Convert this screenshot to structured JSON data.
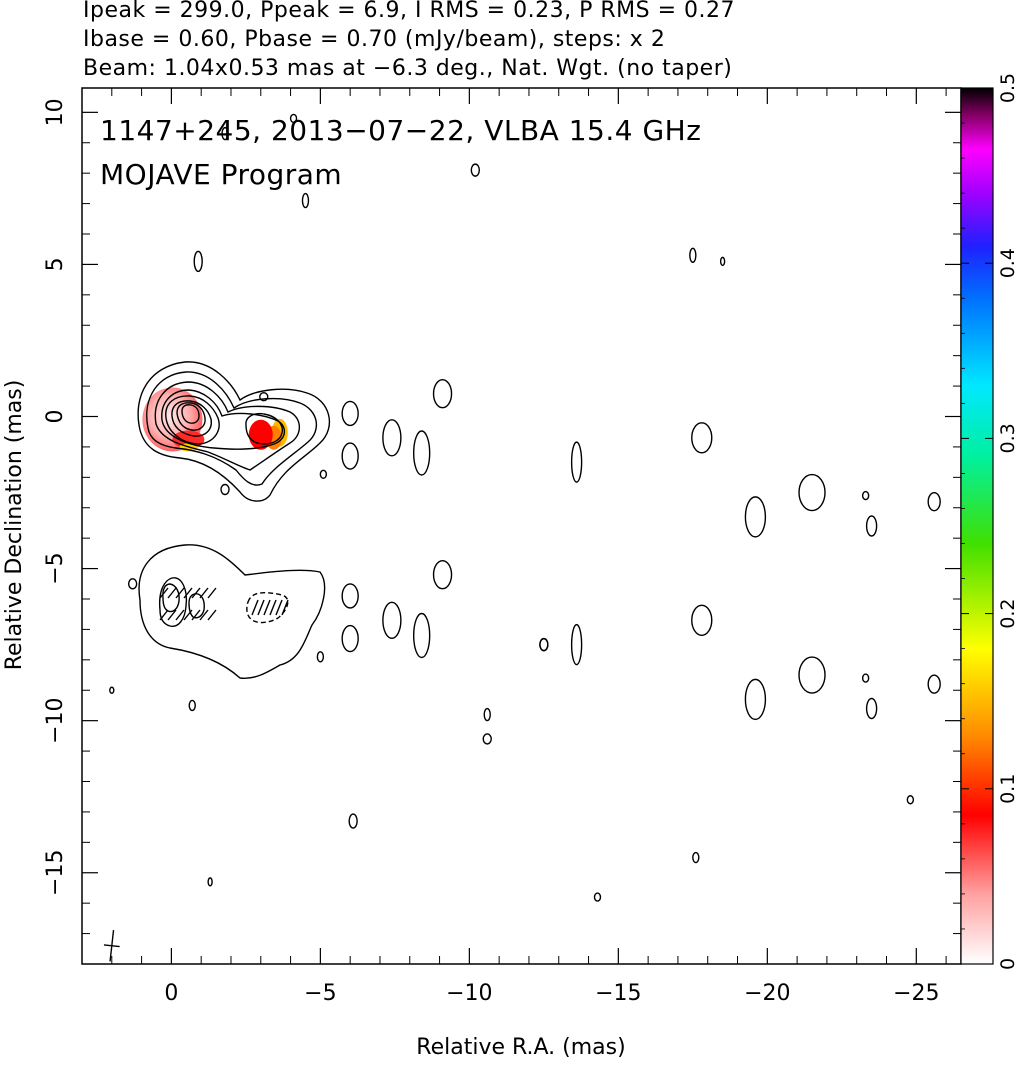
{
  "header": {
    "line1": "Ipeak = 299.0, Ppeak = 6.9, I RMS = 0.23, P RMS = 0.27",
    "line2": "Ibase = 0.60, Pbase = 0.70 (mJy/beam), steps: x 2",
    "line3": "Beam: 1.04x0.53 mas at −6.3 deg., Nat. Wgt. (no taper)"
  },
  "chart_data": [
    {
      "type": "contour-map",
      "title": "1147+245, 2013−07−22, VLBA 15.4 GHz",
      "subtitle": "MOJAVE Program",
      "xlabel": "Relative R.A. (mas)",
      "ylabel": "Relative Declination (mas)",
      "xlim": [
        3,
        -26.5
      ],
      "ylim": [
        -18,
        10.8
      ],
      "x_ticks": [
        0,
        -5,
        -10,
        -15,
        -20,
        -25
      ],
      "x_tick_labels": [
        "0",
        "−5",
        "−10",
        "−15",
        "−20",
        "−25"
      ],
      "y_ticks": [
        10,
        5,
        0,
        -5,
        -10,
        -15
      ],
      "y_tick_labels": [
        "10",
        "5",
        "0",
        "−5",
        "−10",
        "−15"
      ],
      "grid": false,
      "beam": {
        "major_mas": 1.04,
        "minor_mas": 0.53,
        "pa_deg": -6.3,
        "center": [
          2,
          -17.4
        ]
      },
      "colorbar": {
        "range": [
          0,
          0.5
        ],
        "ticks": [
          0,
          0.1,
          0.2,
          0.3,
          0.4,
          0.5
        ],
        "tick_labels": [
          "0",
          "0.1",
          "0.2",
          "0.3",
          "0.4",
          "0.5"
        ],
        "position": "right"
      },
      "panels": [
        {
          "name": "total-intensity",
          "core_peak_mjy_beam": 299.0,
          "core_center": [
            0.1,
            0.1
          ],
          "jet_knot_center": [
            -3.0,
            -0.6
          ],
          "contour_base_mjy_beam": 0.6,
          "contour_step": 2
        },
        {
          "name": "polarization",
          "center_offset_dec": -6,
          "peak_mjy_beam": 6.9,
          "contour_base_mjy_beam": 0.7
        }
      ]
    }
  ]
}
